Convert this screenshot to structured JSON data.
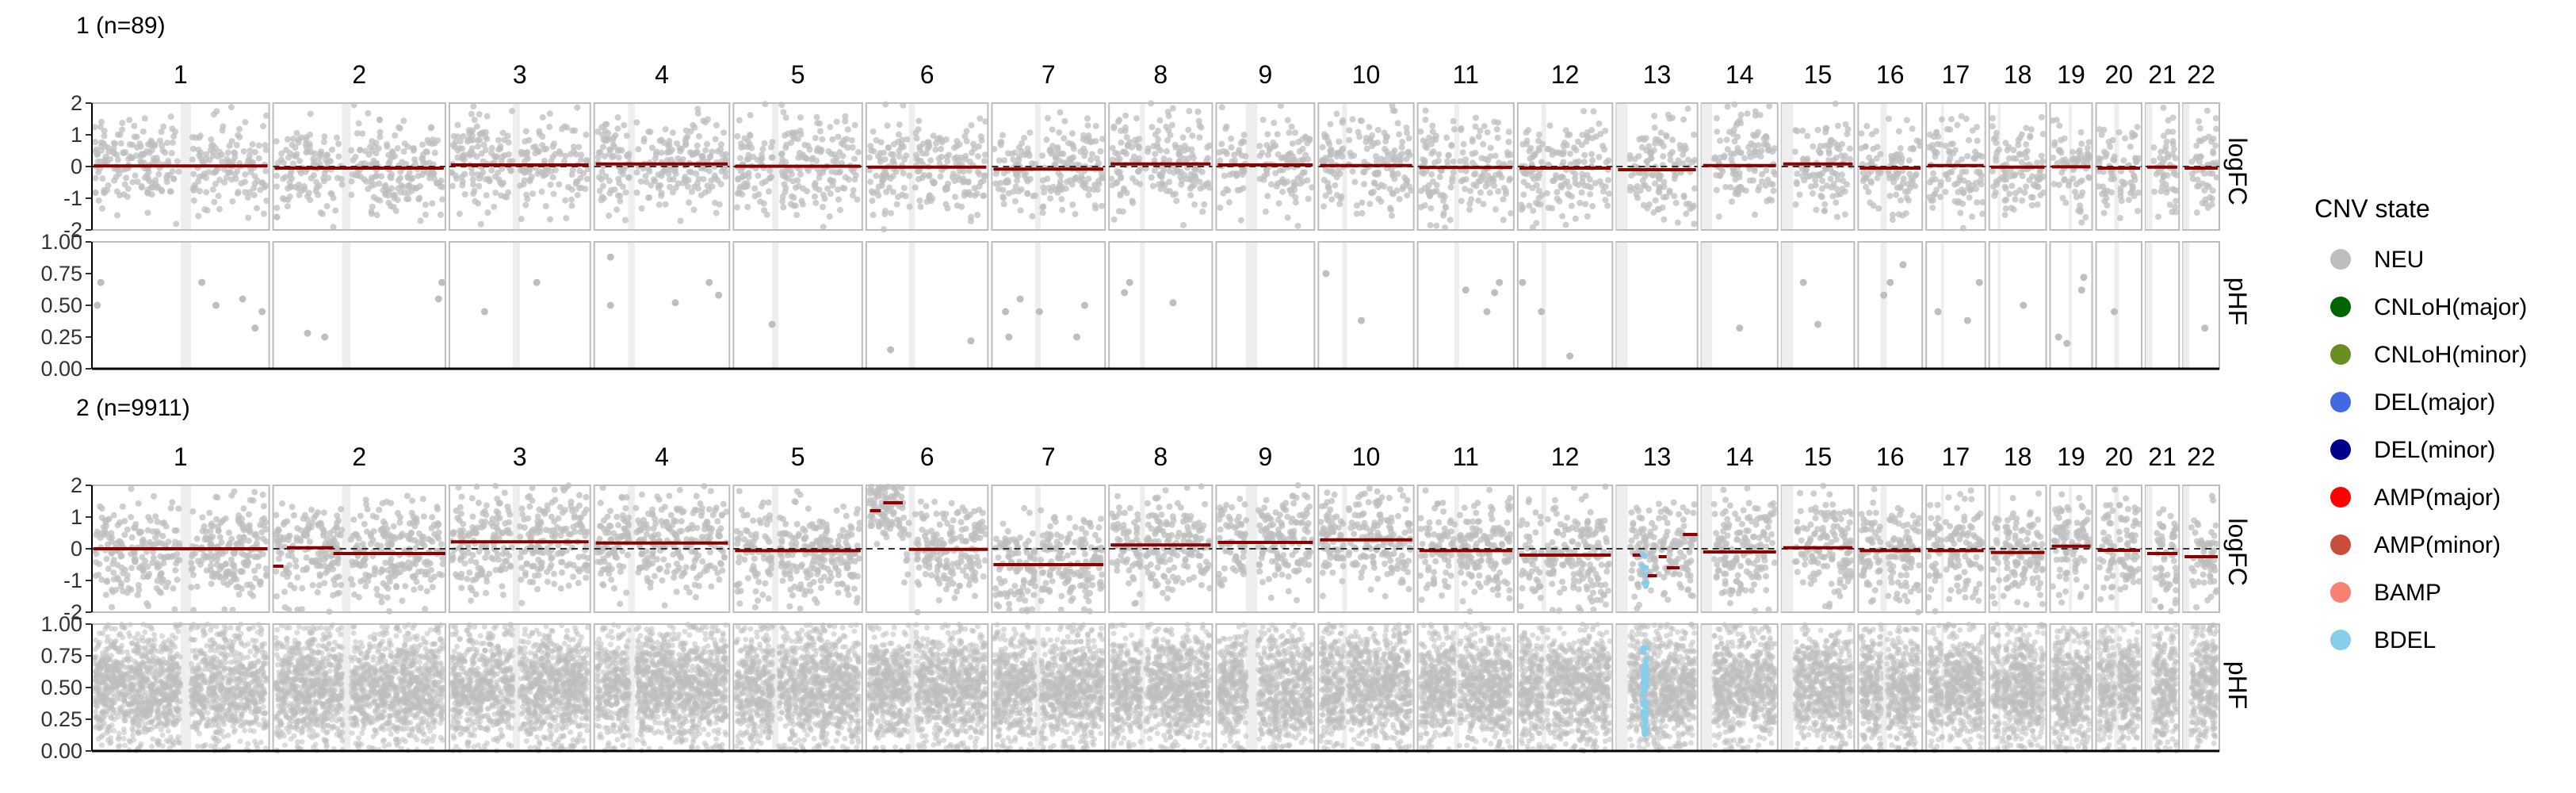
{
  "chart_data": {
    "type": "scatter",
    "chromosomes": [
      "1",
      "2",
      "3",
      "4",
      "5",
      "6",
      "7",
      "8",
      "9",
      "10",
      "11",
      "12",
      "13",
      "14",
      "15",
      "16",
      "17",
      "18",
      "19",
      "20",
      "21",
      "22"
    ],
    "chrom_relative_widths": [
      249,
      242,
      198,
      190,
      181,
      171,
      159,
      145,
      138,
      134,
      135,
      133,
      114,
      107,
      102,
      90,
      83,
      80,
      59,
      64,
      47,
      51
    ],
    "facet_labels": {
      "logfc": "logFC",
      "phf": "pHF"
    },
    "logfc_ylim": [
      -2,
      2
    ],
    "logfc_ticks": [
      "2",
      "1",
      "0",
      "-1",
      "-2"
    ],
    "phf_ylim": [
      0,
      1
    ],
    "phf_ticks": [
      "1.00",
      "0.75",
      "0.50",
      "0.25",
      "0.00"
    ],
    "groups": [
      {
        "title": "1 (n=89)",
        "logfc_segments": [
          0.02,
          -0.05,
          0.05,
          0.08,
          0.01,
          -0.02,
          -0.08,
          0.08,
          0.05,
          0.03,
          -0.03,
          -0.05,
          -0.1,
          0.03,
          0.08,
          -0.05,
          0.03,
          -0.02,
          -0.01,
          -0.05,
          -0.02,
          -0.05
        ],
        "phf_points": [
          {
            "chr": "1",
            "pos": 0.03,
            "phf": 0.5
          },
          {
            "chr": "1",
            "pos": 0.05,
            "phf": 0.68
          },
          {
            "chr": "1",
            "pos": 0.62,
            "phf": 0.68
          },
          {
            "chr": "1",
            "pos": 0.7,
            "phf": 0.5
          },
          {
            "chr": "1",
            "pos": 0.85,
            "phf": 0.55
          },
          {
            "chr": "1",
            "pos": 0.92,
            "phf": 0.32
          },
          {
            "chr": "1",
            "pos": 0.96,
            "phf": 0.45
          },
          {
            "chr": "2",
            "pos": 0.2,
            "phf": 0.28
          },
          {
            "chr": "2",
            "pos": 0.3,
            "phf": 0.25
          },
          {
            "chr": "2",
            "pos": 0.96,
            "phf": 0.55
          },
          {
            "chr": "2",
            "pos": 0.98,
            "phf": 0.68
          },
          {
            "chr": "3",
            "pos": 0.25,
            "phf": 0.45
          },
          {
            "chr": "3",
            "pos": 0.62,
            "phf": 0.68
          },
          {
            "chr": "4",
            "pos": 0.12,
            "phf": 0.88
          },
          {
            "chr": "4",
            "pos": 0.12,
            "phf": 0.5
          },
          {
            "chr": "4",
            "pos": 0.6,
            "phf": 0.52
          },
          {
            "chr": "4",
            "pos": 0.85,
            "phf": 0.68
          },
          {
            "chr": "4",
            "pos": 0.92,
            "phf": 0.58
          },
          {
            "chr": "5",
            "pos": 0.3,
            "phf": 0.35
          },
          {
            "chr": "6",
            "pos": 0.2,
            "phf": 0.15
          },
          {
            "chr": "6",
            "pos": 0.86,
            "phf": 0.22
          },
          {
            "chr": "7",
            "pos": 0.12,
            "phf": 0.45
          },
          {
            "chr": "7",
            "pos": 0.15,
            "phf": 0.25
          },
          {
            "chr": "7",
            "pos": 0.25,
            "phf": 0.55
          },
          {
            "chr": "7",
            "pos": 0.42,
            "phf": 0.45
          },
          {
            "chr": "7",
            "pos": 0.75,
            "phf": 0.25
          },
          {
            "chr": "7",
            "pos": 0.82,
            "phf": 0.5
          },
          {
            "chr": "8",
            "pos": 0.15,
            "phf": 0.6
          },
          {
            "chr": "8",
            "pos": 0.2,
            "phf": 0.68
          },
          {
            "chr": "8",
            "pos": 0.62,
            "phf": 0.52
          },
          {
            "chr": "10",
            "pos": 0.08,
            "phf": 0.75
          },
          {
            "chr": "10",
            "pos": 0.45,
            "phf": 0.38
          },
          {
            "chr": "11",
            "pos": 0.5,
            "phf": 0.62
          },
          {
            "chr": "11",
            "pos": 0.72,
            "phf": 0.45
          },
          {
            "chr": "11",
            "pos": 0.8,
            "phf": 0.6
          },
          {
            "chr": "11",
            "pos": 0.85,
            "phf": 0.68
          },
          {
            "chr": "12",
            "pos": 0.05,
            "phf": 0.68
          },
          {
            "chr": "12",
            "pos": 0.25,
            "phf": 0.45
          },
          {
            "chr": "12",
            "pos": 0.55,
            "phf": 0.1
          },
          {
            "chr": "14",
            "pos": 0.5,
            "phf": 0.32
          },
          {
            "chr": "15",
            "pos": 0.3,
            "phf": 0.68
          },
          {
            "chr": "15",
            "pos": 0.5,
            "phf": 0.35
          },
          {
            "chr": "16",
            "pos": 0.4,
            "phf": 0.58
          },
          {
            "chr": "16",
            "pos": 0.5,
            "phf": 0.68
          },
          {
            "chr": "16",
            "pos": 0.7,
            "phf": 0.82
          },
          {
            "chr": "17",
            "pos": 0.2,
            "phf": 0.45
          },
          {
            "chr": "17",
            "pos": 0.7,
            "phf": 0.38
          },
          {
            "chr": "17",
            "pos": 0.9,
            "phf": 0.68
          },
          {
            "chr": "18",
            "pos": 0.6,
            "phf": 0.5
          },
          {
            "chr": "19",
            "pos": 0.2,
            "phf": 0.25
          },
          {
            "chr": "19",
            "pos": 0.4,
            "phf": 0.2
          },
          {
            "chr": "19",
            "pos": 0.75,
            "phf": 0.62
          },
          {
            "chr": "19",
            "pos": 0.8,
            "phf": 0.72
          },
          {
            "chr": "20",
            "pos": 0.4,
            "phf": 0.45
          },
          {
            "chr": "22",
            "pos": 0.6,
            "phf": 0.32
          }
        ]
      },
      {
        "title": "2 (n=9911)",
        "logfc_segments": [
          0.0,
          -0.08,
          0.22,
          0.18,
          -0.06,
          -0.02,
          -0.5,
          0.12,
          0.2,
          0.28,
          -0.06,
          -0.2,
          -0.1,
          -0.1,
          0.03,
          -0.06,
          -0.06,
          -0.12,
          0.08,
          -0.05,
          -0.15,
          -0.25
        ],
        "logfc_subsegments": [
          {
            "chr": "2",
            "start": 0.0,
            "end": 0.06,
            "value": -0.55
          },
          {
            "chr": "2",
            "start": 0.08,
            "end": 0.35,
            "value": 0.03
          },
          {
            "chr": "2",
            "start": 0.35,
            "end": 1.0,
            "value": -0.15
          },
          {
            "chr": "6",
            "start": 0.03,
            "end": 0.12,
            "value": 1.2
          },
          {
            "chr": "6",
            "start": 0.14,
            "end": 0.3,
            "value": 1.45
          },
          {
            "chr": "6",
            "start": 0.35,
            "end": 1.0,
            "value": -0.02
          },
          {
            "chr": "13",
            "start": 0.2,
            "end": 0.35,
            "value": -0.2
          },
          {
            "chr": "13",
            "start": 0.38,
            "end": 0.5,
            "value": -0.85
          },
          {
            "chr": "13",
            "start": 0.52,
            "end": 0.62,
            "value": -0.25
          },
          {
            "chr": "13",
            "start": 0.62,
            "end": 0.78,
            "value": -0.6
          },
          {
            "chr": "13",
            "start": 0.82,
            "end": 1.0,
            "value": 0.45
          }
        ],
        "bdel_region": {
          "chr": "13",
          "start": 0.32,
          "end": 0.38
        }
      }
    ],
    "legend": {
      "title": "CNV state",
      "items": [
        {
          "label": "NEU",
          "color": "#bebebe"
        },
        {
          "label": "CNLoH(major)",
          "color": "#006400"
        },
        {
          "label": "CNLoH(minor)",
          "color": "#6b8e23"
        },
        {
          "label": "DEL(major)",
          "color": "#4169e1"
        },
        {
          "label": "DEL(minor)",
          "color": "#00008b"
        },
        {
          "label": "AMP(major)",
          "color": "#ff0000"
        },
        {
          "label": "AMP(minor)",
          "color": "#c94f3c"
        },
        {
          "label": "BAMP",
          "color": "#fa8072"
        },
        {
          "label": "BDEL",
          "color": "#87ceeb"
        }
      ]
    },
    "colors": {
      "point": "#bebebe",
      "segment": "#8b0000",
      "dashed_zero": "#333333",
      "panel_border": "#bdbdbd",
      "shade": "#eeeeee"
    }
  }
}
